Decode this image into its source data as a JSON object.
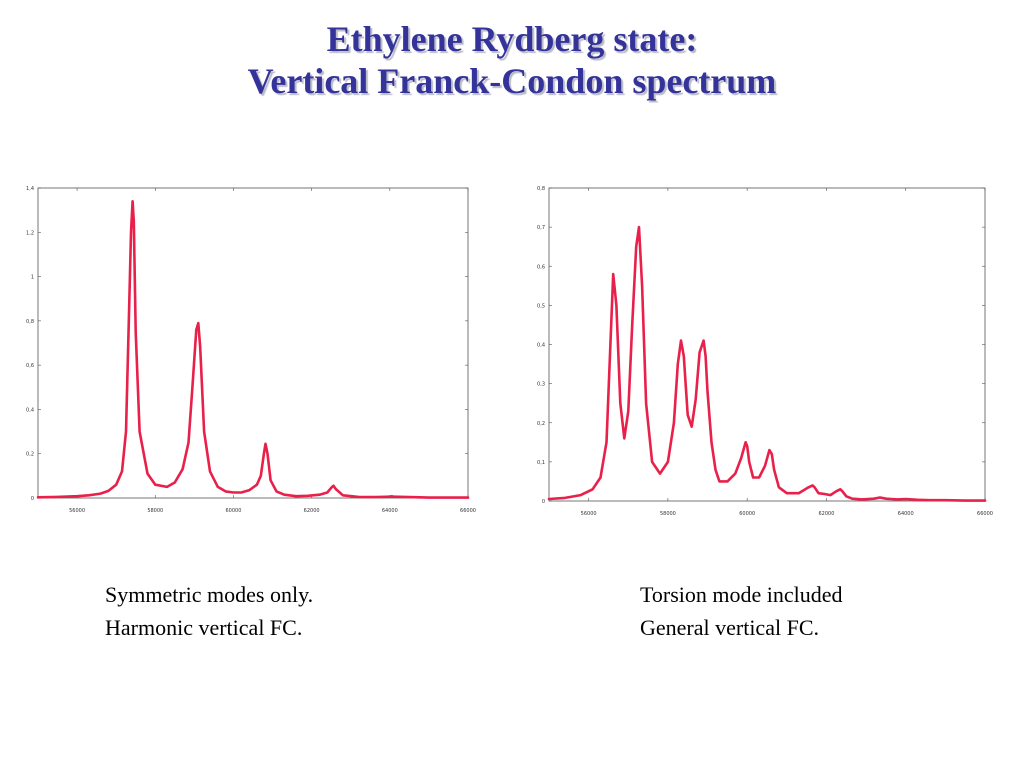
{
  "title": {
    "line1": "Ethylene Rydberg state:",
    "line2": "Vertical Franck-Condon spectrum",
    "color": "#333399"
  },
  "captions": {
    "left": {
      "line1": "Symmetric modes only.",
      "line2": "Harmonic vertical FC."
    },
    "right": {
      "line1": "Torsion mode included",
      "line2": "General vertical FC."
    }
  },
  "chart_data": [
    {
      "type": "line",
      "title": "",
      "xlabel": "",
      "ylabel": "",
      "xlim": [
        55000,
        66000
      ],
      "ylim": [
        0,
        1.4
      ],
      "x_ticks": [
        56000,
        58000,
        60000,
        62000,
        64000,
        66000
      ],
      "x_tick_labels": [
        "56000",
        "58000",
        "60000",
        "62000",
        "64000",
        "66000"
      ],
      "y_ticks": [
        0,
        0.2,
        0.4,
        0.6,
        0.8,
        1,
        1.2,
        1.4
      ],
      "y_tick_labels": [
        "0",
        "0,2",
        "0,4",
        "0,6",
        "0,8",
        "1",
        "1,2",
        "1,4"
      ],
      "grid": false,
      "line_color": "#e8204a",
      "series": [
        {
          "x": [
            55000,
            55500,
            56000,
            56300,
            56600,
            56800,
            57000,
            57150,
            57250,
            57330,
            57380,
            57420,
            57450,
            57500,
            57600,
            57800,
            58000,
            58300,
            58500,
            58700,
            58850,
            58950,
            59050,
            59100,
            59150,
            59250,
            59400,
            59600,
            59800,
            60000,
            60200,
            60400,
            60600,
            60700,
            60780,
            60820,
            60870,
            60950,
            61100,
            61300,
            61600,
            61900,
            62200,
            62400,
            62520,
            62560,
            62620,
            62800,
            63200,
            63600,
            64000,
            64050,
            64100,
            64500,
            65000,
            66000
          ],
          "y": [
            0.003,
            0.005,
            0.008,
            0.012,
            0.02,
            0.032,
            0.06,
            0.12,
            0.3,
            0.85,
            1.2,
            1.34,
            1.25,
            0.75,
            0.3,
            0.11,
            0.06,
            0.05,
            0.07,
            0.13,
            0.25,
            0.5,
            0.76,
            0.79,
            0.68,
            0.3,
            0.12,
            0.05,
            0.03,
            0.025,
            0.025,
            0.035,
            0.06,
            0.1,
            0.2,
            0.245,
            0.2,
            0.08,
            0.03,
            0.015,
            0.008,
            0.01,
            0.015,
            0.025,
            0.05,
            0.055,
            0.04,
            0.012,
            0.005,
            0.004,
            0.006,
            0.008,
            0.006,
            0.004,
            0.002,
            0.002
          ]
        }
      ]
    },
    {
      "type": "line",
      "title": "",
      "xlabel": "",
      "ylabel": "",
      "xlim": [
        55000,
        66000
      ],
      "ylim": [
        0,
        0.8
      ],
      "x_ticks": [
        56000,
        58000,
        60000,
        62000,
        64000,
        66000
      ],
      "x_tick_labels": [
        "56000",
        "58000",
        "60000",
        "62000",
        "64000",
        "66000"
      ],
      "y_ticks": [
        0,
        0.1,
        0.2,
        0.3,
        0.4,
        0.5,
        0.6,
        0.7,
        0.8
      ],
      "y_tick_labels": [
        "0",
        "0,1",
        "0,2",
        "0,3",
        "0,4",
        "0,5",
        "0,6",
        "0,7",
        "0,8"
      ],
      "grid": false,
      "line_color": "#e8204a",
      "series": [
        {
          "x": [
            55000,
            55400,
            55800,
            56100,
            56300,
            56450,
            56550,
            56620,
            56700,
            56800,
            56900,
            57000,
            57100,
            57200,
            57270,
            57350,
            57450,
            57600,
            57800,
            58000,
            58150,
            58250,
            58330,
            58400,
            58500,
            58600,
            58700,
            58800,
            58900,
            58950,
            59000,
            59100,
            59200,
            59300,
            59500,
            59700,
            59850,
            59960,
            60000,
            60050,
            60150,
            60300,
            60450,
            60560,
            60620,
            60680,
            60800,
            61000,
            61300,
            61550,
            61650,
            61700,
            61800,
            61950,
            62100,
            62250,
            62350,
            62400,
            62500,
            62650,
            62900,
            63200,
            63350,
            63500,
            63800,
            64000,
            64300,
            64600,
            65000,
            65500,
            66000
          ],
          "y": [
            0.005,
            0.008,
            0.015,
            0.03,
            0.06,
            0.15,
            0.4,
            0.58,
            0.5,
            0.25,
            0.16,
            0.23,
            0.45,
            0.65,
            0.7,
            0.55,
            0.25,
            0.1,
            0.07,
            0.1,
            0.2,
            0.35,
            0.41,
            0.37,
            0.22,
            0.19,
            0.26,
            0.38,
            0.41,
            0.37,
            0.28,
            0.15,
            0.08,
            0.05,
            0.05,
            0.07,
            0.11,
            0.15,
            0.14,
            0.1,
            0.06,
            0.06,
            0.09,
            0.13,
            0.12,
            0.08,
            0.035,
            0.02,
            0.02,
            0.035,
            0.04,
            0.035,
            0.02,
            0.018,
            0.015,
            0.025,
            0.03,
            0.025,
            0.012,
            0.006,
            0.004,
            0.006,
            0.009,
            0.006,
            0.004,
            0.005,
            0.003,
            0.002,
            0.002,
            0.001,
            0.001
          ]
        }
      ]
    }
  ]
}
